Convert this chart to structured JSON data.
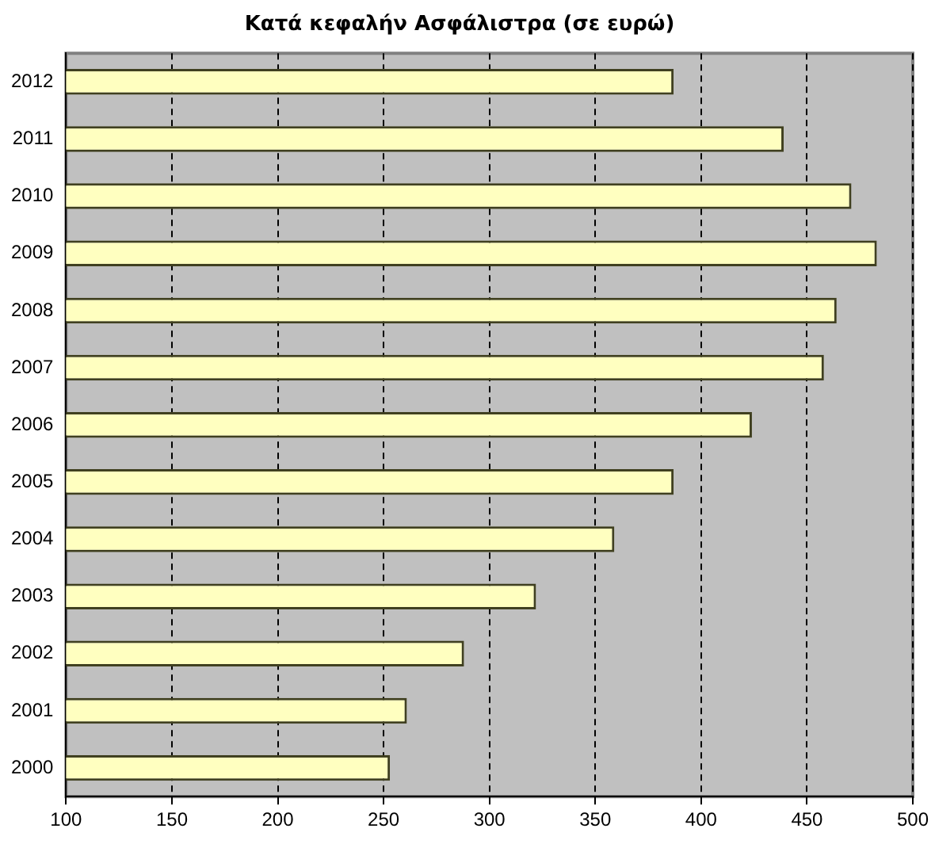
{
  "chart_data": {
    "type": "bar",
    "orientation": "horizontal",
    "title": "Κατά κεφαλήν Ασφάλιστρα (σε ευρώ)",
    "categories": [
      "2012",
      "2011",
      "2010",
      "2009",
      "2008",
      "2007",
      "2006",
      "2005",
      "2004",
      "2003",
      "2002",
      "2001",
      "2000"
    ],
    "values": [
      387,
      439,
      471,
      483,
      464,
      458,
      424,
      387,
      359,
      322,
      288,
      261,
      253
    ],
    "color": "#ffffc0",
    "xlim": [
      100,
      500
    ],
    "xticks": [
      100,
      150,
      200,
      250,
      300,
      350,
      400,
      450,
      500
    ],
    "grid": "x",
    "legend": false
  }
}
